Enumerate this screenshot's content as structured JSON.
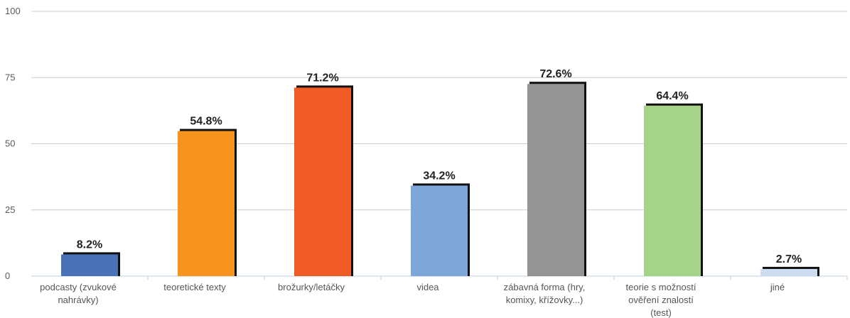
{
  "chart_data": {
    "type": "bar",
    "title": "",
    "xlabel": "",
    "ylabel": "",
    "ylim": [
      0,
      100
    ],
    "yticks": [
      0,
      25,
      50,
      75,
      100
    ],
    "grid": true,
    "categories": [
      [
        "podcasty (zvukové",
        "nahrávky)"
      ],
      [
        "teoretické texty"
      ],
      [
        "brožurky/letáčky"
      ],
      [
        "videa"
      ],
      [
        "zábavná forma (hry,",
        "komixy, křížovky...)"
      ],
      [
        "teorie s možností",
        "ověření znalostí",
        "(test)"
      ],
      [
        "jiné"
      ]
    ],
    "values": [
      8.2,
      54.8,
      71.2,
      34.2,
      72.6,
      64.4,
      2.7
    ],
    "data_labels": [
      "8.2%",
      "54.8%",
      "71.2%",
      "34.2%",
      "72.6%",
      "64.4%",
      "2.7%"
    ],
    "colors": [
      "#4a72b8",
      "#f7941d",
      "#f05a24",
      "#7ea6d8",
      "#949494",
      "#a6d38a",
      "#cddcf0"
    ]
  }
}
